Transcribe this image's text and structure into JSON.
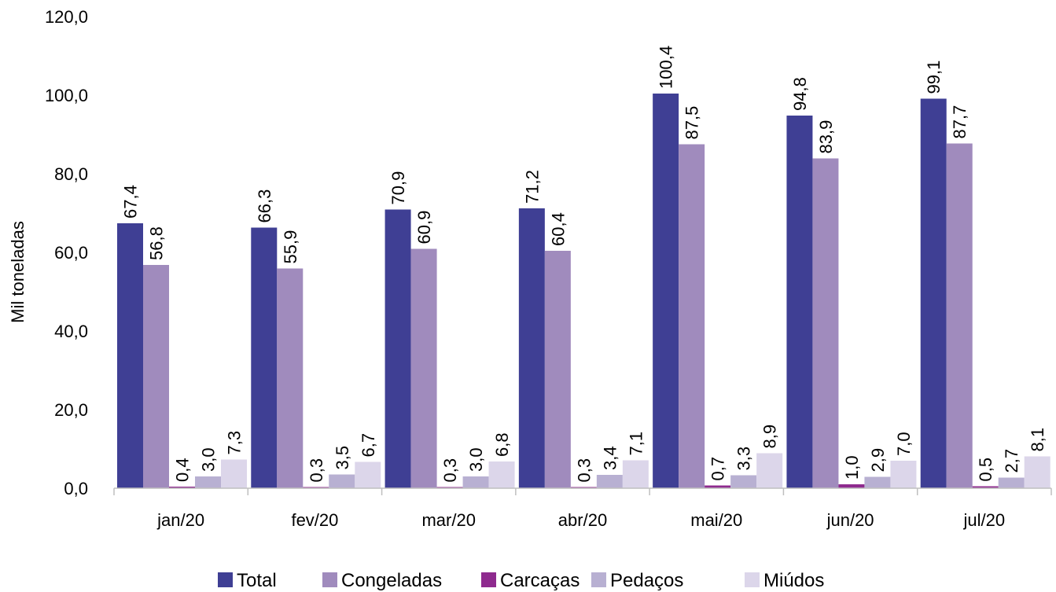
{
  "chart_data": {
    "type": "bar",
    "ylabel": "Mil toneladas",
    "xlabel": "",
    "ylim": [
      0,
      120
    ],
    "ytick_values": [
      0,
      20,
      40,
      60,
      80,
      100,
      120
    ],
    "ytick_labels": [
      "0,0",
      "20,0",
      "40,0",
      "60,0",
      "80,0",
      "100,0",
      "120,0"
    ],
    "categories": [
      "jan/20",
      "fev/20",
      "mar/20",
      "abr/20",
      "mai/20",
      "jun/20",
      "jul/20"
    ],
    "series": [
      {
        "name": "Total",
        "color": "#3f3f94",
        "values": [
          67.4,
          66.3,
          70.9,
          71.2,
          100.4,
          94.8,
          99.1
        ],
        "labels": [
          "67,4",
          "66,3",
          "70,9",
          "71,2",
          "100,4",
          "94,8",
          "99,1"
        ]
      },
      {
        "name": "Congeladas",
        "color": "#a08bbd",
        "values": [
          56.8,
          55.9,
          60.9,
          60.4,
          87.5,
          83.9,
          87.7
        ],
        "labels": [
          "56,8",
          "55,9",
          "60,9",
          "60,4",
          "87,5",
          "83,9",
          "87,7"
        ]
      },
      {
        "name": "Carcaças",
        "color": "#8e2a8e",
        "values": [
          0.4,
          0.3,
          0.3,
          0.3,
          0.7,
          1.0,
          0.5
        ],
        "labels": [
          "0,4",
          "0,3",
          "0,3",
          "0,3",
          "0,7",
          "1,0",
          "0,5"
        ]
      },
      {
        "name": "Pedaços",
        "color": "#b8b0d2",
        "values": [
          3.0,
          3.5,
          3.0,
          3.4,
          3.3,
          2.9,
          2.7
        ],
        "labels": [
          "3,0",
          "3,5",
          "3,0",
          "3,4",
          "3,3",
          "2,9",
          "2,7"
        ]
      },
      {
        "name": "Miúdos",
        "color": "#dcd6ea",
        "values": [
          7.3,
          6.7,
          6.8,
          7.1,
          8.9,
          7.0,
          8.1
        ],
        "labels": [
          "7,3",
          "6,7",
          "6,8",
          "7,1",
          "8,9",
          "7,0",
          "8,1"
        ]
      }
    ],
    "grid": false,
    "legend_position": "bottom"
  }
}
